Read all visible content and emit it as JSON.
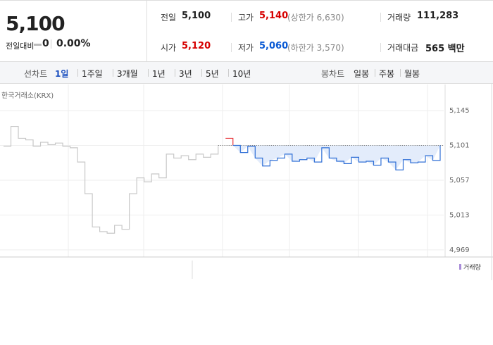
{
  "quote": {
    "price": "5,100",
    "change_label": "전일대비",
    "change": "0",
    "change_rate": "0.00%"
  },
  "stats": [
    [
      {
        "label": "전일",
        "value": "5,100"
      },
      {
        "label": "고가",
        "value": "5,140",
        "note": "(상한가 6,630)"
      },
      {
        "label": "거래량",
        "value": "111,283"
      }
    ],
    [
      {
        "label": "시가",
        "value": "5,120"
      },
      {
        "label": "저가",
        "value": "5,060",
        "note": "(하한가 3,570)"
      },
      {
        "label": "거래대금",
        "value": "565 백만"
      }
    ]
  ],
  "toolbar": {
    "line_label": "선차트",
    "line_periods": [
      "1일",
      "1주일",
      "3개월",
      "1년",
      "3년",
      "5년",
      "10년"
    ],
    "candle_label": "봉차트",
    "candle_periods": [
      "일봉",
      "주봉",
      "월봉"
    ]
  },
  "chart_data": {
    "type": "line",
    "source": "한국거래소(KRX)",
    "volume_legend": "거래량",
    "ylim": [
      4960,
      5178
    ],
    "yticks": [
      {
        "value": 5145,
        "label": "5,145"
      },
      {
        "value": 5101,
        "label": "5,101"
      },
      {
        "value": 5057,
        "label": "5,057"
      },
      {
        "value": 5013,
        "label": "5,013"
      },
      {
        "value": 4969,
        "label": "4,969"
      }
    ],
    "ref_line": 5101,
    "series": [
      {
        "color": "#c8c8c8",
        "values": [
          5100,
          5125,
          5110,
          5108,
          5100,
          5105,
          5102,
          5104,
          5100,
          5098,
          5080,
          5040,
          4998,
          4992,
          4990,
          5000,
          4995,
          5040,
          5060,
          5055,
          5065,
          5060,
          5090,
          5085,
          5088,
          5083,
          5090,
          5086,
          5090,
          5100,
          null,
          null,
          null,
          null,
          null,
          null,
          null,
          null,
          null,
          null,
          null,
          null,
          null,
          null,
          null,
          null,
          null,
          null,
          null,
          null,
          null,
          null,
          null,
          null,
          null,
          null,
          null,
          null,
          null,
          null
        ]
      },
      {
        "color": "#e8383d",
        "values": [
          null,
          null,
          null,
          null,
          null,
          null,
          null,
          null,
          null,
          null,
          null,
          null,
          null,
          null,
          null,
          null,
          null,
          null,
          null,
          null,
          null,
          null,
          null,
          null,
          null,
          null,
          null,
          null,
          null,
          null,
          5110,
          5101,
          null,
          null,
          null,
          null,
          null,
          null,
          null,
          null,
          null,
          null,
          null,
          null,
          null,
          null,
          null,
          null,
          null,
          null,
          null,
          null,
          null,
          null,
          null,
          null,
          null,
          null,
          null,
          null
        ]
      },
      {
        "color": "#2f6fd6",
        "values": [
          null,
          null,
          null,
          null,
          null,
          null,
          null,
          null,
          null,
          null,
          null,
          null,
          null,
          null,
          null,
          null,
          null,
          null,
          null,
          null,
          null,
          null,
          null,
          null,
          null,
          null,
          null,
          null,
          null,
          null,
          null,
          5101,
          5092,
          5100,
          5085,
          5075,
          5082,
          5085,
          5090,
          5081,
          5083,
          5085,
          5080,
          5098,
          5085,
          5081,
          5078,
          5086,
          5080,
          5081,
          5076,
          5085,
          5080,
          5070,
          5083,
          5079,
          5080,
          5088,
          5082,
          5101
        ]
      }
    ]
  }
}
